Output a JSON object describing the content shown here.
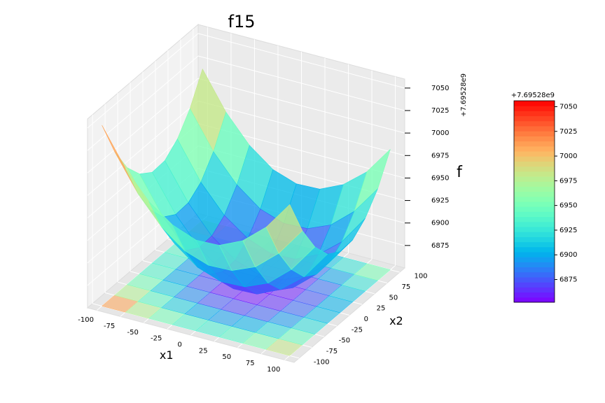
{
  "chart_data": {
    "type": "surface3d",
    "title": "f15",
    "xlabel": "x1",
    "ylabel": "x2",
    "zlabel": "f",
    "offset_label": "+7.69528e9",
    "colormap": "rainbow",
    "x": [
      -100,
      -75,
      -50,
      -25,
      0,
      25,
      50,
      75,
      100
    ],
    "y": [
      -100,
      -75,
      -50,
      -25,
      0,
      25,
      50,
      75,
      100
    ],
    "z": [
      [
        7051,
        7010,
        6980,
        6961,
        6951,
        6952,
        6964,
        6986,
        7018
      ],
      [
        7010,
        6970,
        6940,
        6920,
        6911,
        6912,
        6923,
        6945,
        6977
      ],
      [
        6980,
        6940,
        6910,
        6890,
        6881,
        6882,
        6893,
        6915,
        6947
      ],
      [
        6961,
        6920,
        6890,
        6870,
        6861,
        6862,
        6874,
        6895,
        6927
      ],
      [
        6951,
        6911,
        6881,
        6861,
        6852,
        6853,
        6864,
        6886,
        6918
      ],
      [
        6952,
        6912,
        6882,
        6862,
        6853,
        6854,
        6865,
        6887,
        6919
      ],
      [
        6964,
        6923,
        6893,
        6874,
        6864,
        6865,
        6877,
        6898,
        6931
      ],
      [
        6986,
        6945,
        6915,
        6895,
        6886,
        6887,
        6898,
        6920,
        6952
      ],
      [
        7018,
        6977,
        6947,
        6927,
        6918,
        6919,
        6931,
        6952,
        6984
      ]
    ],
    "xlim": [
      -110,
      110
    ],
    "ylim": [
      -110,
      110
    ],
    "zlim": [
      6850,
      7060
    ],
    "xticks": [
      -100,
      -75,
      -50,
      -25,
      0,
      25,
      50,
      75,
      100
    ],
    "yticks": [
      -100,
      -75,
      -50,
      -25,
      0,
      25,
      50,
      75,
      100
    ],
    "zticks": [
      6875,
      6900,
      6925,
      6950,
      6975,
      7000,
      7025,
      7050
    ],
    "clim": [
      6852,
      7056
    ],
    "cticks": [
      6875,
      6900,
      6925,
      6950,
      6975,
      7000,
      7025,
      7050
    ],
    "grid": true
  }
}
